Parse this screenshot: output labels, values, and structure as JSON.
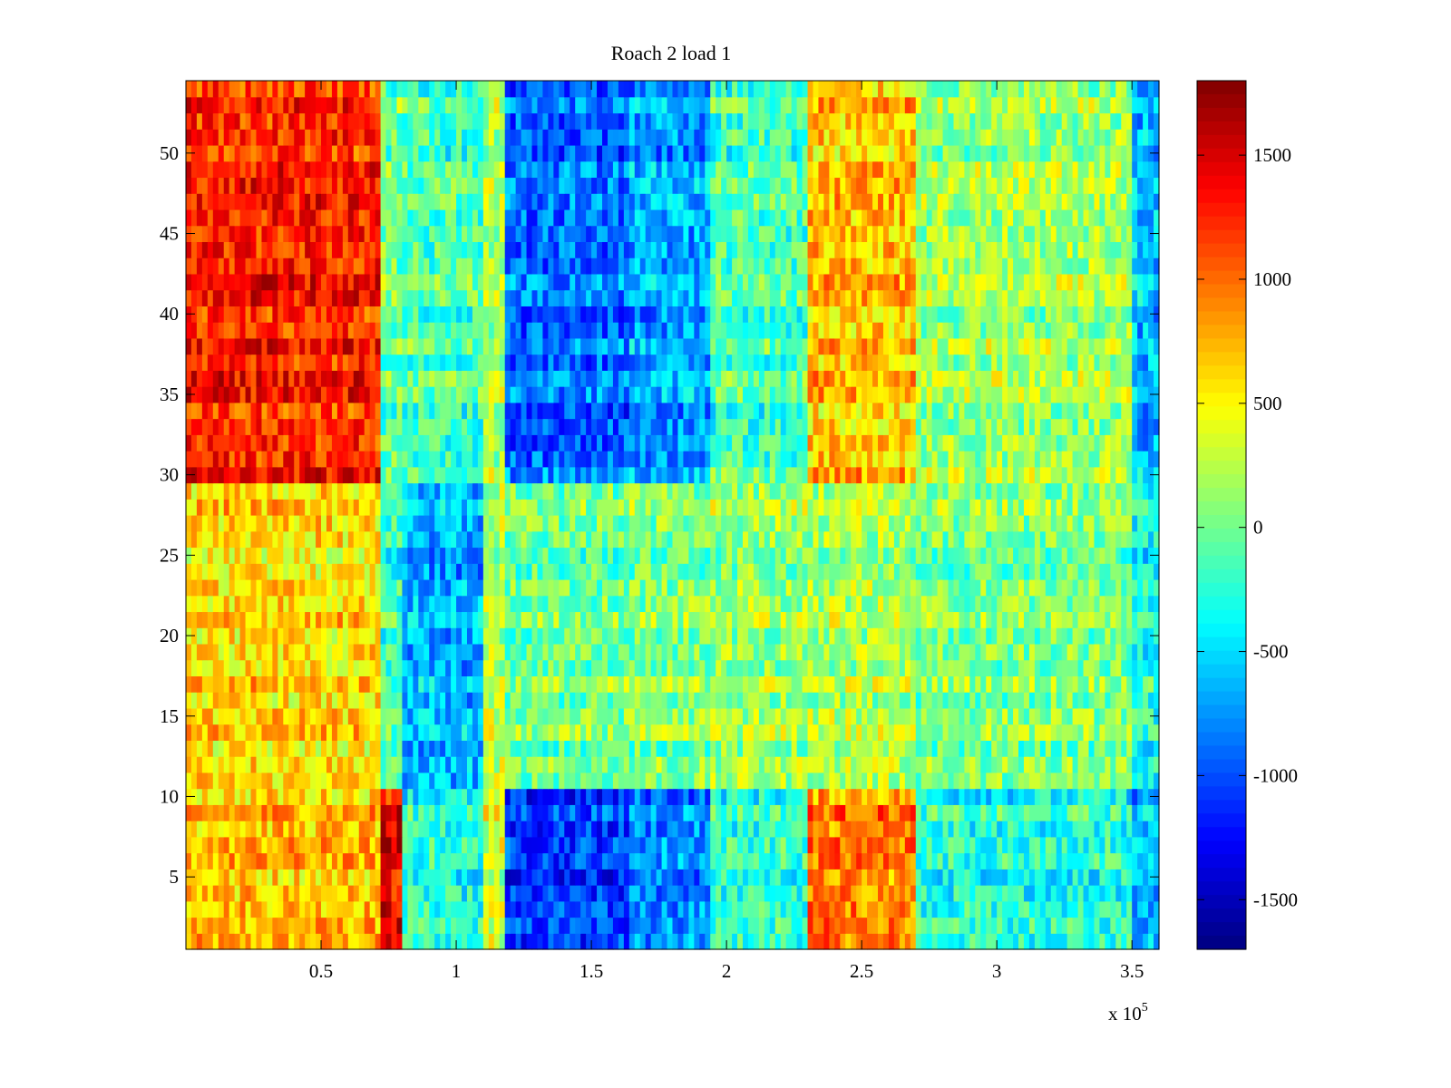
{
  "chart_data": {
    "type": "heatmap",
    "title": "Roach 2 load 1",
    "xlabel": "",
    "ylabel": "",
    "x_multiplier_text": "x 10",
    "x_multiplier_exponent": "5",
    "xlim": [
      0,
      3.6
    ],
    "ylim": [
      0.5,
      54.5
    ],
    "x_ticks": [
      0.5,
      1,
      1.5,
      2,
      2.5,
      3,
      3.5
    ],
    "x_tick_labels": [
      "0.5",
      "1",
      "1.5",
      "2",
      "2.5",
      "3",
      "3.5"
    ],
    "y_ticks": [
      5,
      10,
      15,
      20,
      25,
      30,
      35,
      40,
      45,
      50
    ],
    "y_tick_labels": [
      "5",
      "10",
      "15",
      "20",
      "25",
      "30",
      "35",
      "40",
      "45",
      "50"
    ],
    "rows": 54,
    "colormap": "jet",
    "clim": [
      -1700,
      1800
    ],
    "colorbar_ticks": [
      -1500,
      -1000,
      -500,
      0,
      500,
      1000,
      1500
    ],
    "colorbar_tick_labels": [
      "-1500",
      "-1000",
      "-500",
      "0",
      "500",
      "1000",
      "1500"
    ],
    "column_bands": [
      {
        "x_start": 0.0,
        "x_end": 0.72,
        "value_low_rows": 700,
        "value_mid_rows": 600,
        "value_high_rows": 1250
      },
      {
        "x_start": 0.72,
        "x_end": 0.8,
        "value_low_rows": 1400,
        "value_mid_rows": -200,
        "value_high_rows": 0
      },
      {
        "x_start": 0.8,
        "x_end": 1.1,
        "value_low_rows": -300,
        "value_mid_rows": -650,
        "value_high_rows": -150
      },
      {
        "x_start": 1.1,
        "x_end": 1.18,
        "value_low_rows": 300,
        "value_mid_rows": 250,
        "value_high_rows": 200
      },
      {
        "x_start": 1.18,
        "x_end": 1.65,
        "value_low_rows": -1100,
        "value_mid_rows": 0,
        "value_high_rows": -900
      },
      {
        "x_start": 1.65,
        "x_end": 1.95,
        "value_low_rows": -800,
        "value_mid_rows": 50,
        "value_high_rows": -700
      },
      {
        "x_start": 1.95,
        "x_end": 2.3,
        "value_low_rows": -250,
        "value_mid_rows": 150,
        "value_high_rows": -150
      },
      {
        "x_start": 2.3,
        "x_end": 2.7,
        "value_low_rows": 900,
        "value_mid_rows": 200,
        "value_high_rows": 700
      },
      {
        "x_start": 2.7,
        "x_end": 3.5,
        "value_low_rows": -300,
        "value_mid_rows": 50,
        "value_high_rows": 150
      },
      {
        "x_start": 3.5,
        "x_end": 3.6,
        "value_low_rows": -700,
        "value_mid_rows": -300,
        "value_high_rows": -600
      }
    ],
    "row_groups": {
      "low_rows": [
        1,
        10
      ],
      "mid_rows": [
        11,
        29
      ],
      "high_rows": [
        30,
        54
      ]
    }
  }
}
